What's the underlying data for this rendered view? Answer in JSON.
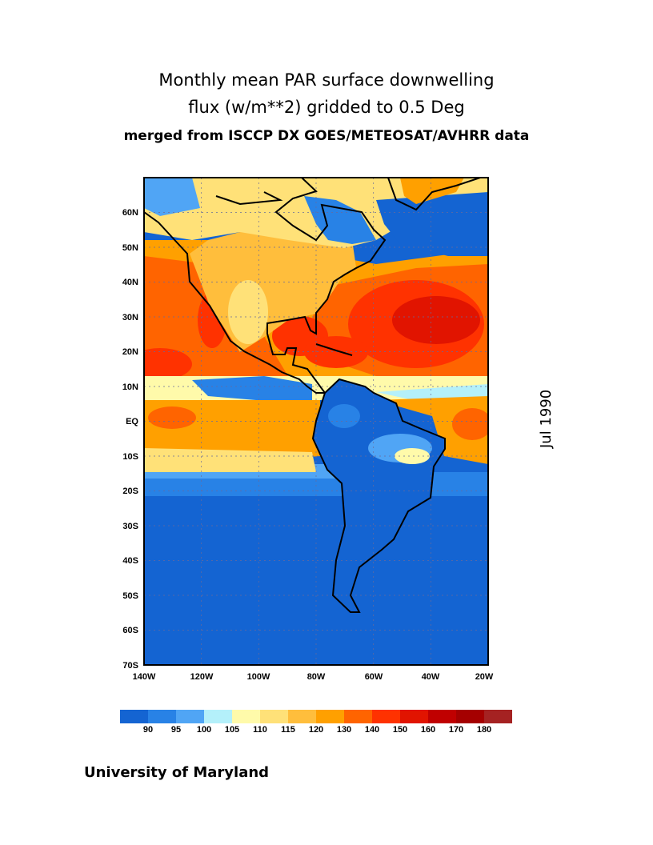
{
  "title": {
    "line1": "Monthly mean PAR surface downwelling",
    "line2": "flux (w/m**2) gridded to 0.5 Deg",
    "line3": "merged from ISCCP DX GOES/METEOSAT/AVHRR data"
  },
  "date_label": "Jul 1990",
  "axes": {
    "lat_labels": [
      "60N",
      "50N",
      "40N",
      "30N",
      "20N",
      "10N",
      "EQ",
      "10S",
      "20S",
      "30S",
      "40S",
      "50S",
      "60S",
      "70S"
    ],
    "lon_labels": [
      "140W",
      "120W",
      "100W",
      "80W",
      "60W",
      "40W",
      "20W"
    ]
  },
  "colorbar": {
    "labels": [
      "90",
      "95",
      "100",
      "105",
      "110",
      "115",
      "120",
      "130",
      "140",
      "150",
      "160",
      "170",
      "180"
    ],
    "colors": [
      "#1464d2",
      "#2882e6",
      "#50a5f5",
      "#b4f0fa",
      "#fffaaa",
      "#ffe178",
      "#ffbe3c",
      "#ffa000",
      "#ff6400",
      "#ff3200",
      "#e11400",
      "#c00000",
      "#a50000",
      "#a52222"
    ]
  },
  "footer": "University of Maryland"
}
